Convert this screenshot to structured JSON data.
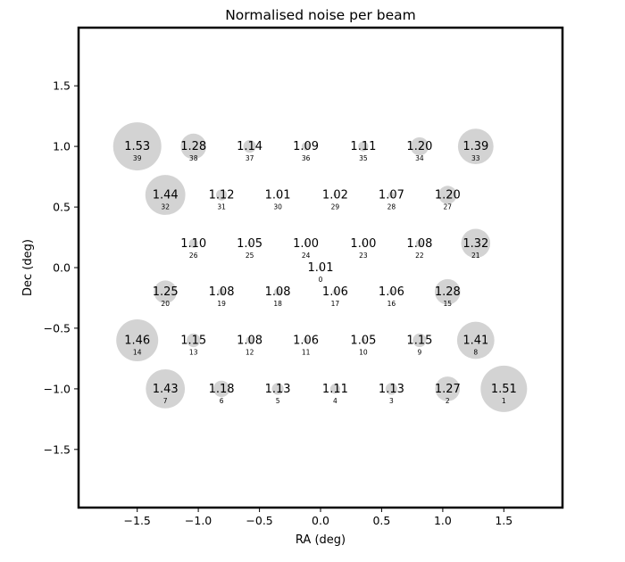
{
  "chart_data": {
    "type": "scatter",
    "title": "Normalised noise per beam",
    "xlabel": "RA (deg)",
    "ylabel": "Dec (deg)",
    "xlim": [
      -1.98,
      1.98
    ],
    "ylim": [
      -1.98,
      1.98
    ],
    "xticks": [
      -1.5,
      -1.0,
      -0.5,
      0.0,
      0.5,
      1.0,
      1.5
    ],
    "yticks": [
      -1.5,
      -1.0,
      -0.5,
      0.0,
      0.5,
      1.0,
      1.5
    ],
    "xtick_labels": [
      "−1.5",
      "−1.0",
      "−0.5",
      "0.0",
      "0.5",
      "1.0",
      "1.5"
    ],
    "ytick_labels": [
      "−1.5",
      "−1.0",
      "−0.5",
      "0.0",
      "0.5",
      "1.0",
      "1.5"
    ],
    "grid": false,
    "legend": "none",
    "marker_color": "#d3d3d3",
    "points": [
      {
        "beam": 0,
        "x": 0.0,
        "y": 0.0,
        "noise": 1.01
      },
      {
        "beam": 1,
        "x": 1.5,
        "y": -1.0,
        "noise": 1.51
      },
      {
        "beam": 2,
        "x": 1.04,
        "y": -1.0,
        "noise": 1.27
      },
      {
        "beam": 3,
        "x": 0.58,
        "y": -1.0,
        "noise": 1.13
      },
      {
        "beam": 4,
        "x": 0.12,
        "y": -1.0,
        "noise": 1.11
      },
      {
        "beam": 5,
        "x": -0.35,
        "y": -1.0,
        "noise": 1.13
      },
      {
        "beam": 6,
        "x": -0.81,
        "y": -1.0,
        "noise": 1.18
      },
      {
        "beam": 7,
        "x": -1.27,
        "y": -1.0,
        "noise": 1.43
      },
      {
        "beam": 8,
        "x": 1.27,
        "y": -0.6,
        "noise": 1.41
      },
      {
        "beam": 9,
        "x": 0.81,
        "y": -0.6,
        "noise": 1.15
      },
      {
        "beam": 10,
        "x": 0.35,
        "y": -0.6,
        "noise": 1.05
      },
      {
        "beam": 11,
        "x": -0.12,
        "y": -0.6,
        "noise": 1.06
      },
      {
        "beam": 12,
        "x": -0.58,
        "y": -0.6,
        "noise": 1.08
      },
      {
        "beam": 13,
        "x": -1.04,
        "y": -0.6,
        "noise": 1.15
      },
      {
        "beam": 14,
        "x": -1.5,
        "y": -0.6,
        "noise": 1.46
      },
      {
        "beam": 15,
        "x": 1.04,
        "y": -0.2,
        "noise": 1.28
      },
      {
        "beam": 16,
        "x": 0.58,
        "y": -0.2,
        "noise": 1.06
      },
      {
        "beam": 17,
        "x": 0.12,
        "y": -0.2,
        "noise": 1.06
      },
      {
        "beam": 18,
        "x": -0.35,
        "y": -0.2,
        "noise": 1.08
      },
      {
        "beam": 19,
        "x": -0.81,
        "y": -0.2,
        "noise": 1.08
      },
      {
        "beam": 20,
        "x": -1.27,
        "y": -0.2,
        "noise": 1.25
      },
      {
        "beam": 21,
        "x": 1.27,
        "y": 0.2,
        "noise": 1.32
      },
      {
        "beam": 22,
        "x": 0.81,
        "y": 0.2,
        "noise": 1.08
      },
      {
        "beam": 23,
        "x": 0.35,
        "y": 0.2,
        "noise": 1.0
      },
      {
        "beam": 24,
        "x": -0.12,
        "y": 0.2,
        "noise": 1.0
      },
      {
        "beam": 25,
        "x": -0.58,
        "y": 0.2,
        "noise": 1.05
      },
      {
        "beam": 26,
        "x": -1.04,
        "y": 0.2,
        "noise": 1.1
      },
      {
        "beam": 27,
        "x": 1.04,
        "y": 0.6,
        "noise": 1.2
      },
      {
        "beam": 28,
        "x": 0.58,
        "y": 0.6,
        "noise": 1.07
      },
      {
        "beam": 29,
        "x": 0.12,
        "y": 0.6,
        "noise": 1.02
      },
      {
        "beam": 30,
        "x": -0.35,
        "y": 0.6,
        "noise": 1.01
      },
      {
        "beam": 31,
        "x": -0.81,
        "y": 0.6,
        "noise": 1.12
      },
      {
        "beam": 32,
        "x": -1.27,
        "y": 0.6,
        "noise": 1.44
      },
      {
        "beam": 33,
        "x": 1.27,
        "y": 1.0,
        "noise": 1.39
      },
      {
        "beam": 34,
        "x": 0.81,
        "y": 1.0,
        "noise": 1.2
      },
      {
        "beam": 35,
        "x": 0.35,
        "y": 1.0,
        "noise": 1.11
      },
      {
        "beam": 36,
        "x": -0.12,
        "y": 1.0,
        "noise": 1.09
      },
      {
        "beam": 37,
        "x": -0.58,
        "y": 1.0,
        "noise": 1.14
      },
      {
        "beam": 38,
        "x": -1.04,
        "y": 1.0,
        "noise": 1.28
      },
      {
        "beam": 39,
        "x": -1.5,
        "y": 1.0,
        "noise": 1.53
      }
    ]
  }
}
